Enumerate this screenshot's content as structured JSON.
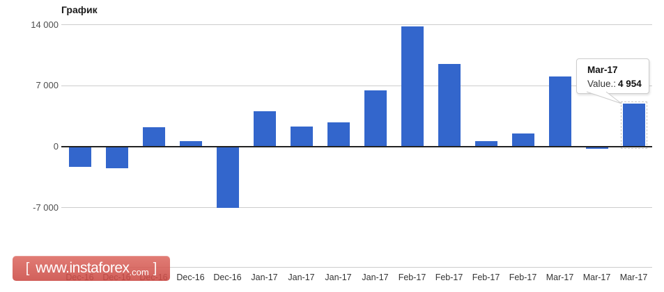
{
  "title": "График",
  "tooltip": {
    "label": "Mar-17",
    "value_label": "Value.:",
    "value": "4 954"
  },
  "watermark": {
    "bracket_left": "[",
    "text_main": "www.instaforex",
    "text_suffix": ".com",
    "bracket_right": "]"
  },
  "colors": {
    "bar": "#3366cc",
    "gridline": "#cccccc",
    "zero_line": "#222222",
    "watermark_red": "#d0504a",
    "tooltip_border": "#cccccc"
  },
  "chart_data": {
    "type": "bar",
    "title": "График",
    "xlabel": "",
    "ylabel": "",
    "categories": [
      "Dec-16",
      "Dec-16",
      "Dec-16",
      "Dec-16",
      "Dec-16",
      "Jan-17",
      "Jan-17",
      "Jan-17",
      "Jan-17",
      "Feb-17",
      "Feb-17",
      "Feb-17",
      "Feb-17",
      "Mar-17",
      "Mar-17",
      "Mar-17"
    ],
    "values": [
      -2300,
      -2500,
      2200,
      600,
      -7000,
      4100,
      2300,
      2800,
      6500,
      13800,
      9500,
      600,
      1500,
      8100,
      -200,
      4954
    ],
    "bar_color": "#3366cc",
    "selected_index": 15,
    "selected_value_exact": "4 954",
    "yticks": [
      {
        "label": "14 000",
        "value": 14000
      },
      {
        "label": "7 000",
        "value": 7000
      },
      {
        "label": "0",
        "value": 0
      },
      {
        "label": "-7 000",
        "value": -7000
      }
    ],
    "ylim": [
      -7000,
      14000
    ],
    "grid": true,
    "legend_position": "none"
  }
}
